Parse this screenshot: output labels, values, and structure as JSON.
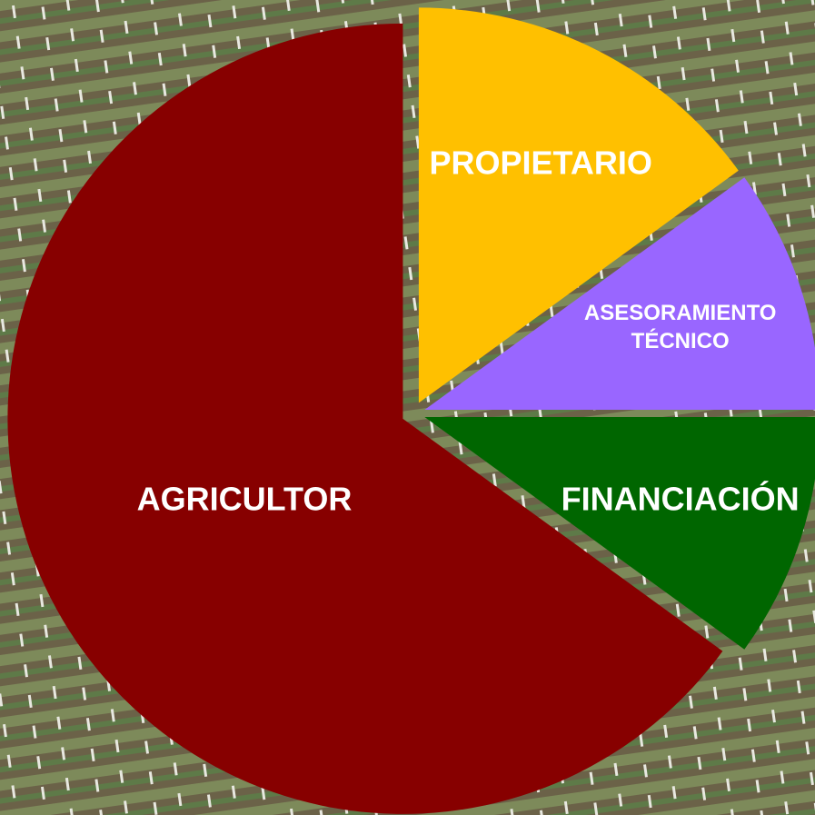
{
  "chart_data": {
    "type": "pie",
    "categories": [
      "PROPIETARIO",
      "ASESORAMIENTO TÉCNICO",
      "FINANCIACIÓN",
      "AGRICULTOR"
    ],
    "values": [
      15,
      10,
      10,
      65
    ],
    "colors": [
      "#ffc000",
      "#9966ff",
      "#006600",
      "#870000"
    ],
    "exploded": true
  }
}
